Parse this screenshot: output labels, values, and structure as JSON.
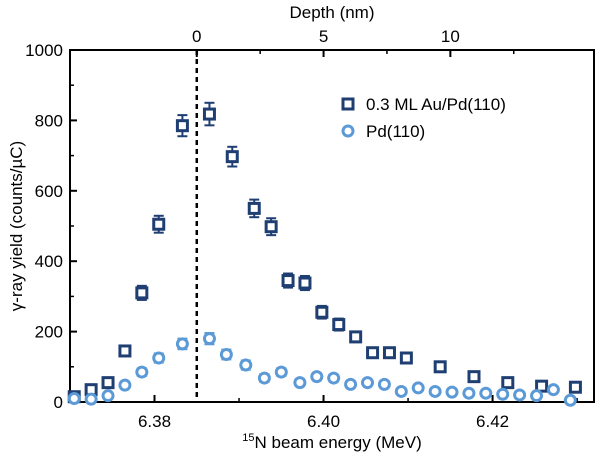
{
  "chart_data": {
    "type": "scatter",
    "xlabel_main": "N beam energy (MeV)",
    "xlabel_sup": "15",
    "xlabel_top": "Depth (nm)",
    "ylabel": "γ-ray yield (counts/µC)",
    "xlim": [
      6.37,
      6.432
    ],
    "ylim": [
      0,
      1000
    ],
    "xticks": [
      {
        "value": 6.38,
        "label": "6.38"
      },
      {
        "value": 6.4,
        "label": "6.40"
      },
      {
        "value": 6.42,
        "label": "6.42"
      }
    ],
    "yticks": [
      {
        "value": 0,
        "label": "0"
      },
      {
        "value": 200,
        "label": "200"
      },
      {
        "value": 400,
        "label": "400"
      },
      {
        "value": 600,
        "label": "600"
      },
      {
        "value": 800,
        "label": "800"
      },
      {
        "value": 1000,
        "label": "1000"
      }
    ],
    "top_ticks": [
      {
        "depth": 0,
        "label": "0"
      },
      {
        "depth": 5,
        "label": "5"
      },
      {
        "depth": 10,
        "label": "10"
      }
    ],
    "depth_zero_energy": 6.385,
    "depth_nm_per_MeV": 333.3,
    "reference_line_x": 6.385,
    "legend_position": "top-right",
    "series": [
      {
        "name": "0.3 ML Au/Pd(110)",
        "marker": "square",
        "color": "#1f3f73",
        "points": [
          {
            "x": 6.3705,
            "y": 15,
            "err": 8
          },
          {
            "x": 6.3725,
            "y": 35,
            "err": 10
          },
          {
            "x": 6.3745,
            "y": 55,
            "err": 10
          },
          {
            "x": 6.3765,
            "y": 145,
            "err": 14
          },
          {
            "x": 6.3785,
            "y": 310,
            "err": 20
          },
          {
            "x": 6.3805,
            "y": 505,
            "err": 24
          },
          {
            "x": 6.3833,
            "y": 785,
            "err": 30
          },
          {
            "x": 6.3865,
            "y": 818,
            "err": 32
          },
          {
            "x": 6.3892,
            "y": 697,
            "err": 28
          },
          {
            "x": 6.3918,
            "y": 550,
            "err": 25
          },
          {
            "x": 6.3938,
            "y": 498,
            "err": 24
          },
          {
            "x": 6.3958,
            "y": 345,
            "err": 20
          },
          {
            "x": 6.3978,
            "y": 338,
            "err": 20
          },
          {
            "x": 6.3998,
            "y": 255,
            "err": 18
          },
          {
            "x": 6.4018,
            "y": 220,
            "err": 17
          },
          {
            "x": 6.4038,
            "y": 185,
            "err": 15
          },
          {
            "x": 6.4058,
            "y": 140,
            "err": 13
          },
          {
            "x": 6.4078,
            "y": 140,
            "err": 13
          },
          {
            "x": 6.4098,
            "y": 125,
            "err": 12
          },
          {
            "x": 6.4138,
            "y": 100,
            "err": 11
          },
          {
            "x": 6.4178,
            "y": 72,
            "err": 10
          },
          {
            "x": 6.4218,
            "y": 55,
            "err": 9
          },
          {
            "x": 6.4258,
            "y": 45,
            "err": 9
          },
          {
            "x": 6.4298,
            "y": 42,
            "err": 8
          }
        ]
      },
      {
        "name": "Pd(110)",
        "marker": "circle",
        "color": "#5b9ad6",
        "points": [
          {
            "x": 6.3705,
            "y": 10,
            "err": 6
          },
          {
            "x": 6.3725,
            "y": 8,
            "err": 6
          },
          {
            "x": 6.3745,
            "y": 18,
            "err": 7
          },
          {
            "x": 6.3765,
            "y": 48,
            "err": 9
          },
          {
            "x": 6.3785,
            "y": 85,
            "err": 11
          },
          {
            "x": 6.3805,
            "y": 125,
            "err": 13
          },
          {
            "x": 6.3833,
            "y": 165,
            "err": 15
          },
          {
            "x": 6.3865,
            "y": 180,
            "err": 16
          },
          {
            "x": 6.3885,
            "y": 135,
            "err": 14
          },
          {
            "x": 6.3908,
            "y": 105,
            "err": 13
          },
          {
            "x": 6.393,
            "y": 68,
            "err": 11
          },
          {
            "x": 6.395,
            "y": 85,
            "err": 11
          },
          {
            "x": 6.3972,
            "y": 55,
            "err": 10
          },
          {
            "x": 6.3992,
            "y": 72,
            "err": 10
          },
          {
            "x": 6.4012,
            "y": 68,
            "err": 10
          },
          {
            "x": 6.4032,
            "y": 50,
            "err": 9
          },
          {
            "x": 6.4052,
            "y": 55,
            "err": 9
          },
          {
            "x": 6.4072,
            "y": 50,
            "err": 9
          },
          {
            "x": 6.4092,
            "y": 30,
            "err": 8
          },
          {
            "x": 6.4112,
            "y": 40,
            "err": 8
          },
          {
            "x": 6.4132,
            "y": 30,
            "err": 8
          },
          {
            "x": 6.4152,
            "y": 28,
            "err": 8
          },
          {
            "x": 6.4172,
            "y": 25,
            "err": 7
          },
          {
            "x": 6.4192,
            "y": 25,
            "err": 7
          },
          {
            "x": 6.4212,
            "y": 22,
            "err": 7
          },
          {
            "x": 6.4232,
            "y": 20,
            "err": 7
          },
          {
            "x": 6.4252,
            "y": 18,
            "err": 7
          },
          {
            "x": 6.4272,
            "y": 35,
            "err": 8
          },
          {
            "x": 6.4292,
            "y": 5,
            "err": 5
          }
        ]
      }
    ]
  }
}
